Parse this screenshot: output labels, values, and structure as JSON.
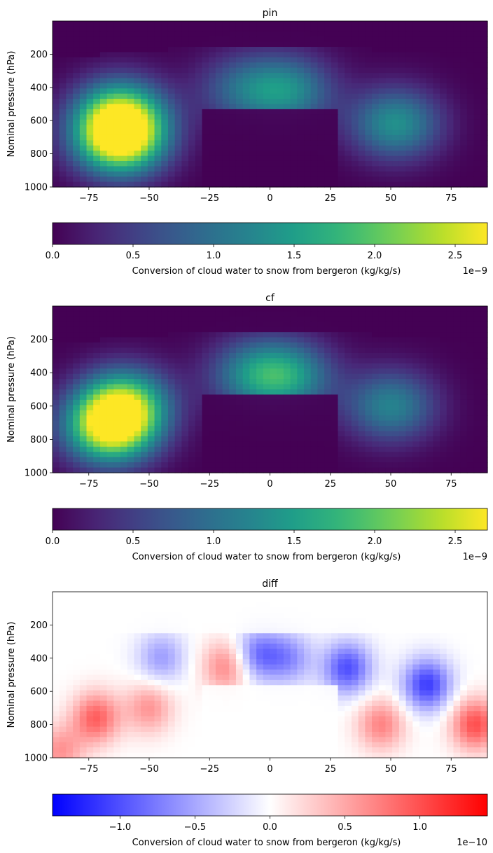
{
  "chart_data": [
    {
      "type": "heatmap",
      "title": "pin",
      "xlabel": "",
      "ylabel": "Nominal pressure (hPa)",
      "xlim": [
        -90,
        90
      ],
      "ylim": [
        1000,
        0
      ],
      "x_ticks": [
        -75,
        -50,
        -25,
        0,
        25,
        50,
        75
      ],
      "x_tick_labels": [
        "−75",
        "−50",
        "−25",
        "0",
        "25",
        "50",
        "75"
      ],
      "y_ticks": [
        200,
        400,
        600,
        800,
        1000
      ],
      "y_tick_labels": [
        "200",
        "400",
        "600",
        "800",
        "1000"
      ],
      "colormap": "viridis",
      "colorbar": {
        "orientation": "horizontal",
        "range": [
          0,
          2.7e-09
        ],
        "ticks": [
          0,
          5e-10,
          1e-09,
          1.5e-09,
          2e-09,
          2.5e-09
        ],
        "tick_labels": [
          "0.0",
          "0.5",
          "1.0",
          "1.5",
          "2.0",
          "2.5"
        ],
        "label": "Conversion of cloud water to snow from bergeron (kg/kg/s)",
        "offset_text": "1e−9"
      },
      "features": [
        {
          "lat": -62,
          "p": 720,
          "value": 2.55e-09
        },
        {
          "lat": -62,
          "p": 560,
          "value": 1.9e-09
        },
        {
          "lat": 52,
          "p": 620,
          "value": 1.35e-09
        },
        {
          "lat": 8,
          "p": 420,
          "value": 1.2e-09
        },
        {
          "lat": -12,
          "p": 410,
          "value": 8e-10
        }
      ]
    },
    {
      "type": "heatmap",
      "title": "cf",
      "xlabel": "",
      "ylabel": "Nominal pressure (hPa)",
      "xlim": [
        -90,
        90
      ],
      "ylim": [
        1000,
        0
      ],
      "x_ticks": [
        -75,
        -50,
        -25,
        0,
        25,
        50,
        75
      ],
      "x_tick_labels": [
        "−75",
        "−50",
        "−25",
        "0",
        "25",
        "50",
        "75"
      ],
      "y_ticks": [
        200,
        400,
        600,
        800,
        1000
      ],
      "y_tick_labels": [
        "200",
        "400",
        "600",
        "800",
        "1000"
      ],
      "colormap": "viridis",
      "colorbar": {
        "orientation": "horizontal",
        "range": [
          0,
          2.7e-09
        ],
        "ticks": [
          0,
          5e-10,
          1e-09,
          1.5e-09,
          2e-09,
          2.5e-09
        ],
        "tick_labels": [
          "0.0",
          "0.5",
          "1.0",
          "1.5",
          "2.0",
          "2.5"
        ],
        "label": "Conversion of cloud water to snow from bergeron (kg/kg/s)",
        "offset_text": "1e−9"
      },
      "features": [
        {
          "lat": -66,
          "p": 730,
          "value": 2.6e-09
        },
        {
          "lat": -60,
          "p": 580,
          "value": 1.75e-09
        },
        {
          "lat": 50,
          "p": 600,
          "value": 1.2e-09
        },
        {
          "lat": 8,
          "p": 420,
          "value": 1.3e-09
        },
        {
          "lat": -8,
          "p": 410,
          "value": 1e-09
        }
      ]
    },
    {
      "type": "heatmap",
      "title": "diff",
      "xlabel": "",
      "ylabel": "Nominal pressure (hPa)",
      "xlim": [
        -90,
        90
      ],
      "ylim": [
        1000,
        0
      ],
      "x_ticks": [
        -75,
        -50,
        -25,
        0,
        25,
        50,
        75
      ],
      "x_tick_labels": [
        "−75",
        "−50",
        "−25",
        "0",
        "25",
        "50",
        "75"
      ],
      "y_ticks": [
        200,
        400,
        600,
        800,
        1000
      ],
      "y_tick_labels": [
        "200",
        "400",
        "600",
        "800",
        "1000"
      ],
      "colormap": "bwr",
      "colorbar": {
        "orientation": "horizontal",
        "range": [
          -1.45e-10,
          1.45e-10
        ],
        "ticks": [
          -1e-10,
          -5e-11,
          0,
          5e-11,
          1e-10
        ],
        "tick_labels": [
          "−1.0",
          "−0.5",
          "0.0",
          "0.5",
          "1.0"
        ],
        "label": "Conversion of cloud water to snow from bergeron (kg/kg/s)",
        "offset_text": "1e−10"
      },
      "features": [
        {
          "lat": 65,
          "p": 560,
          "value": -1.1e-10
        },
        {
          "lat": 32,
          "p": 460,
          "value": -1e-10
        },
        {
          "lat": -5,
          "p": 380,
          "value": -8e-11
        },
        {
          "lat": 8,
          "p": 400,
          "value": -6e-11
        },
        {
          "lat": -45,
          "p": 400,
          "value": -5.5e-11
        },
        {
          "lat": -72,
          "p": 760,
          "value": 9e-11
        },
        {
          "lat": -50,
          "p": 700,
          "value": 6e-11
        },
        {
          "lat": -18,
          "p": 450,
          "value": 7e-11
        },
        {
          "lat": 46,
          "p": 800,
          "value": 7e-11
        },
        {
          "lat": 85,
          "p": 800,
          "value": 1e-10
        },
        {
          "lat": -87,
          "p": 960,
          "value": 6e-11
        }
      ]
    }
  ]
}
